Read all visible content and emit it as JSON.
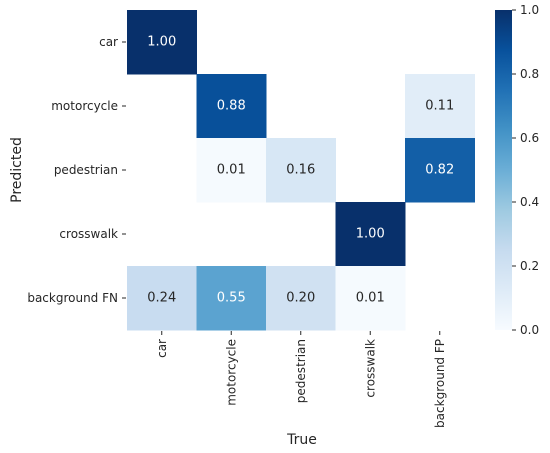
{
  "chart_data": {
    "type": "heatmap",
    "title": "",
    "xlabel": "True",
    "ylabel": "Predicted",
    "x_categories": [
      "car",
      "motorcycle",
      "pedestrian",
      "crosswalk",
      "background FP"
    ],
    "y_categories": [
      "car",
      "motorcycle",
      "pedestrian",
      "crosswalk",
      "background FN"
    ],
    "values": [
      [
        1.0,
        null,
        null,
        null,
        null
      ],
      [
        null,
        0.88,
        null,
        null,
        0.11
      ],
      [
        null,
        0.01,
        0.16,
        null,
        0.82
      ],
      [
        null,
        null,
        null,
        1.0,
        null
      ],
      [
        0.24,
        0.55,
        0.2,
        0.01,
        null
      ]
    ],
    "labels": [
      [
        "1.00",
        "",
        "",
        "",
        ""
      ],
      [
        "",
        "0.88",
        "",
        "",
        "0.11"
      ],
      [
        "",
        "0.01",
        "0.16",
        "",
        "0.82"
      ],
      [
        "",
        "",
        "",
        "1.00",
        ""
      ],
      [
        "0.24",
        "0.55",
        "0.20",
        "0.01",
        ""
      ]
    ],
    "colormap": "Blues",
    "colorbar": {
      "range": [
        0.0,
        1.0
      ],
      "ticks": [
        "0.0",
        "0.2",
        "0.4",
        "0.6",
        "0.8",
        "1.0"
      ]
    },
    "grid": false
  }
}
